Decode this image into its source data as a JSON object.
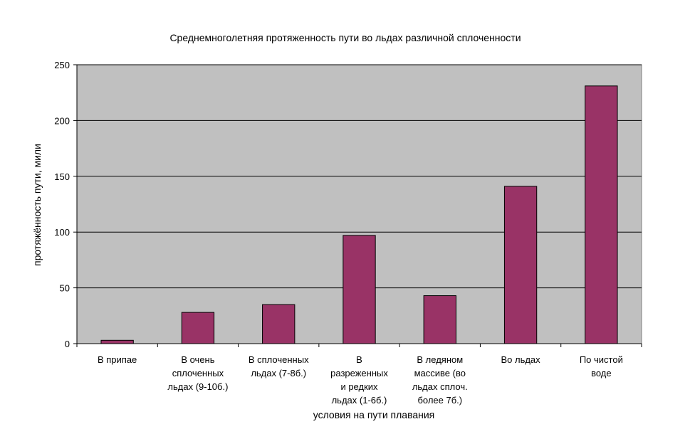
{
  "chart_data": {
    "type": "bar",
    "title": "Среднемноголетняя протяженность пути во льдах различной сплоченности",
    "xlabel": "условия на пути плавания",
    "ylabel": "протяжённость пути, мили",
    "categories": [
      [
        "В припае"
      ],
      [
        "В очень",
        "сплоченных",
        "льдах (9-10б.)"
      ],
      [
        "В сплоченных",
        "льдах (7-8б.)"
      ],
      [
        "В",
        "разреженных",
        "и редких",
        "льдах (1-6б.)"
      ],
      [
        "В ледяном",
        "массиве (во",
        "льдах сплоч.",
        "более 7б.)"
      ],
      [
        "Во льдах"
      ],
      [
        "По чистой",
        "воде"
      ]
    ],
    "values": [
      3,
      28,
      35,
      97,
      43,
      141,
      231
    ],
    "ylim": [
      0,
      250
    ],
    "yticks": [
      0,
      50,
      100,
      150,
      200,
      250
    ],
    "grid": true,
    "legend": "none",
    "colors": {
      "bar": "#993366",
      "plot_background": "#c0c0c0",
      "gridline": "#000000"
    }
  }
}
